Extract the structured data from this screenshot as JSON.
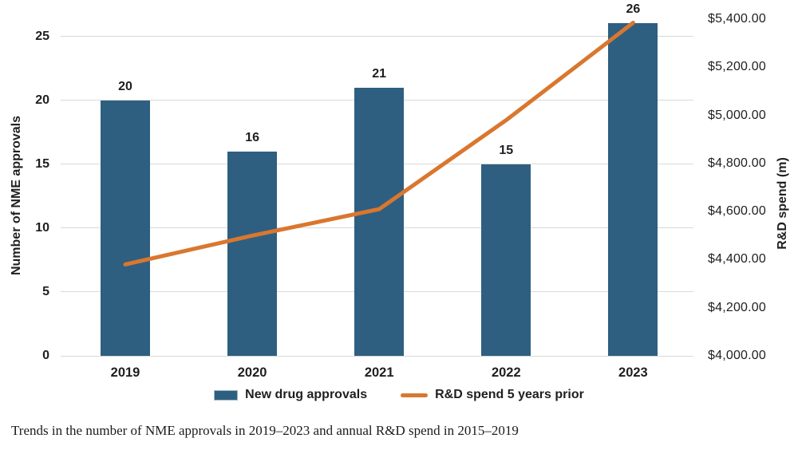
{
  "chart_data": {
    "type": "combo_bar_line",
    "categories": [
      "2019",
      "2020",
      "2021",
      "2022",
      "2023"
    ],
    "series": [
      {
        "name": "New drug approvals",
        "type": "bar",
        "axis": "left",
        "values": [
          20,
          16,
          21,
          15,
          26
        ]
      },
      {
        "name": "R&D spend 5 years prior",
        "type": "line",
        "axis": "right",
        "values": [
          4380,
          4500,
          4610,
          4980,
          5385
        ]
      }
    ],
    "bar_labels": [
      "20",
      "16",
      "21",
      "15",
      "26"
    ],
    "left_axis": {
      "title": "Number of NME approvals",
      "min": 0,
      "max": 25,
      "tick_step": 5,
      "tick_labels": [
        "0",
        "5",
        "10",
        "15",
        "20",
        "25"
      ]
    },
    "right_axis": {
      "title": "R&D spend (m)",
      "min": 4000,
      "max": 5400,
      "tick_step": 200,
      "tick_labels": [
        "$4,000.00",
        "$4,200.00",
        "$4,400.00",
        "$4,600.00",
        "$4,800.00",
        "$5,000.00",
        "$5,200.00",
        "$5,400.00"
      ]
    },
    "gridlines": true,
    "legend_position": "bottom"
  },
  "caption": "Trends in the number of NME approvals in 2019–2023 and annual R&D spend in 2015–2019",
  "colors": {
    "bar": "#2e5f80",
    "line": "#d9772f",
    "grid": "#d9d9d9",
    "text": "#1f1f1f"
  }
}
